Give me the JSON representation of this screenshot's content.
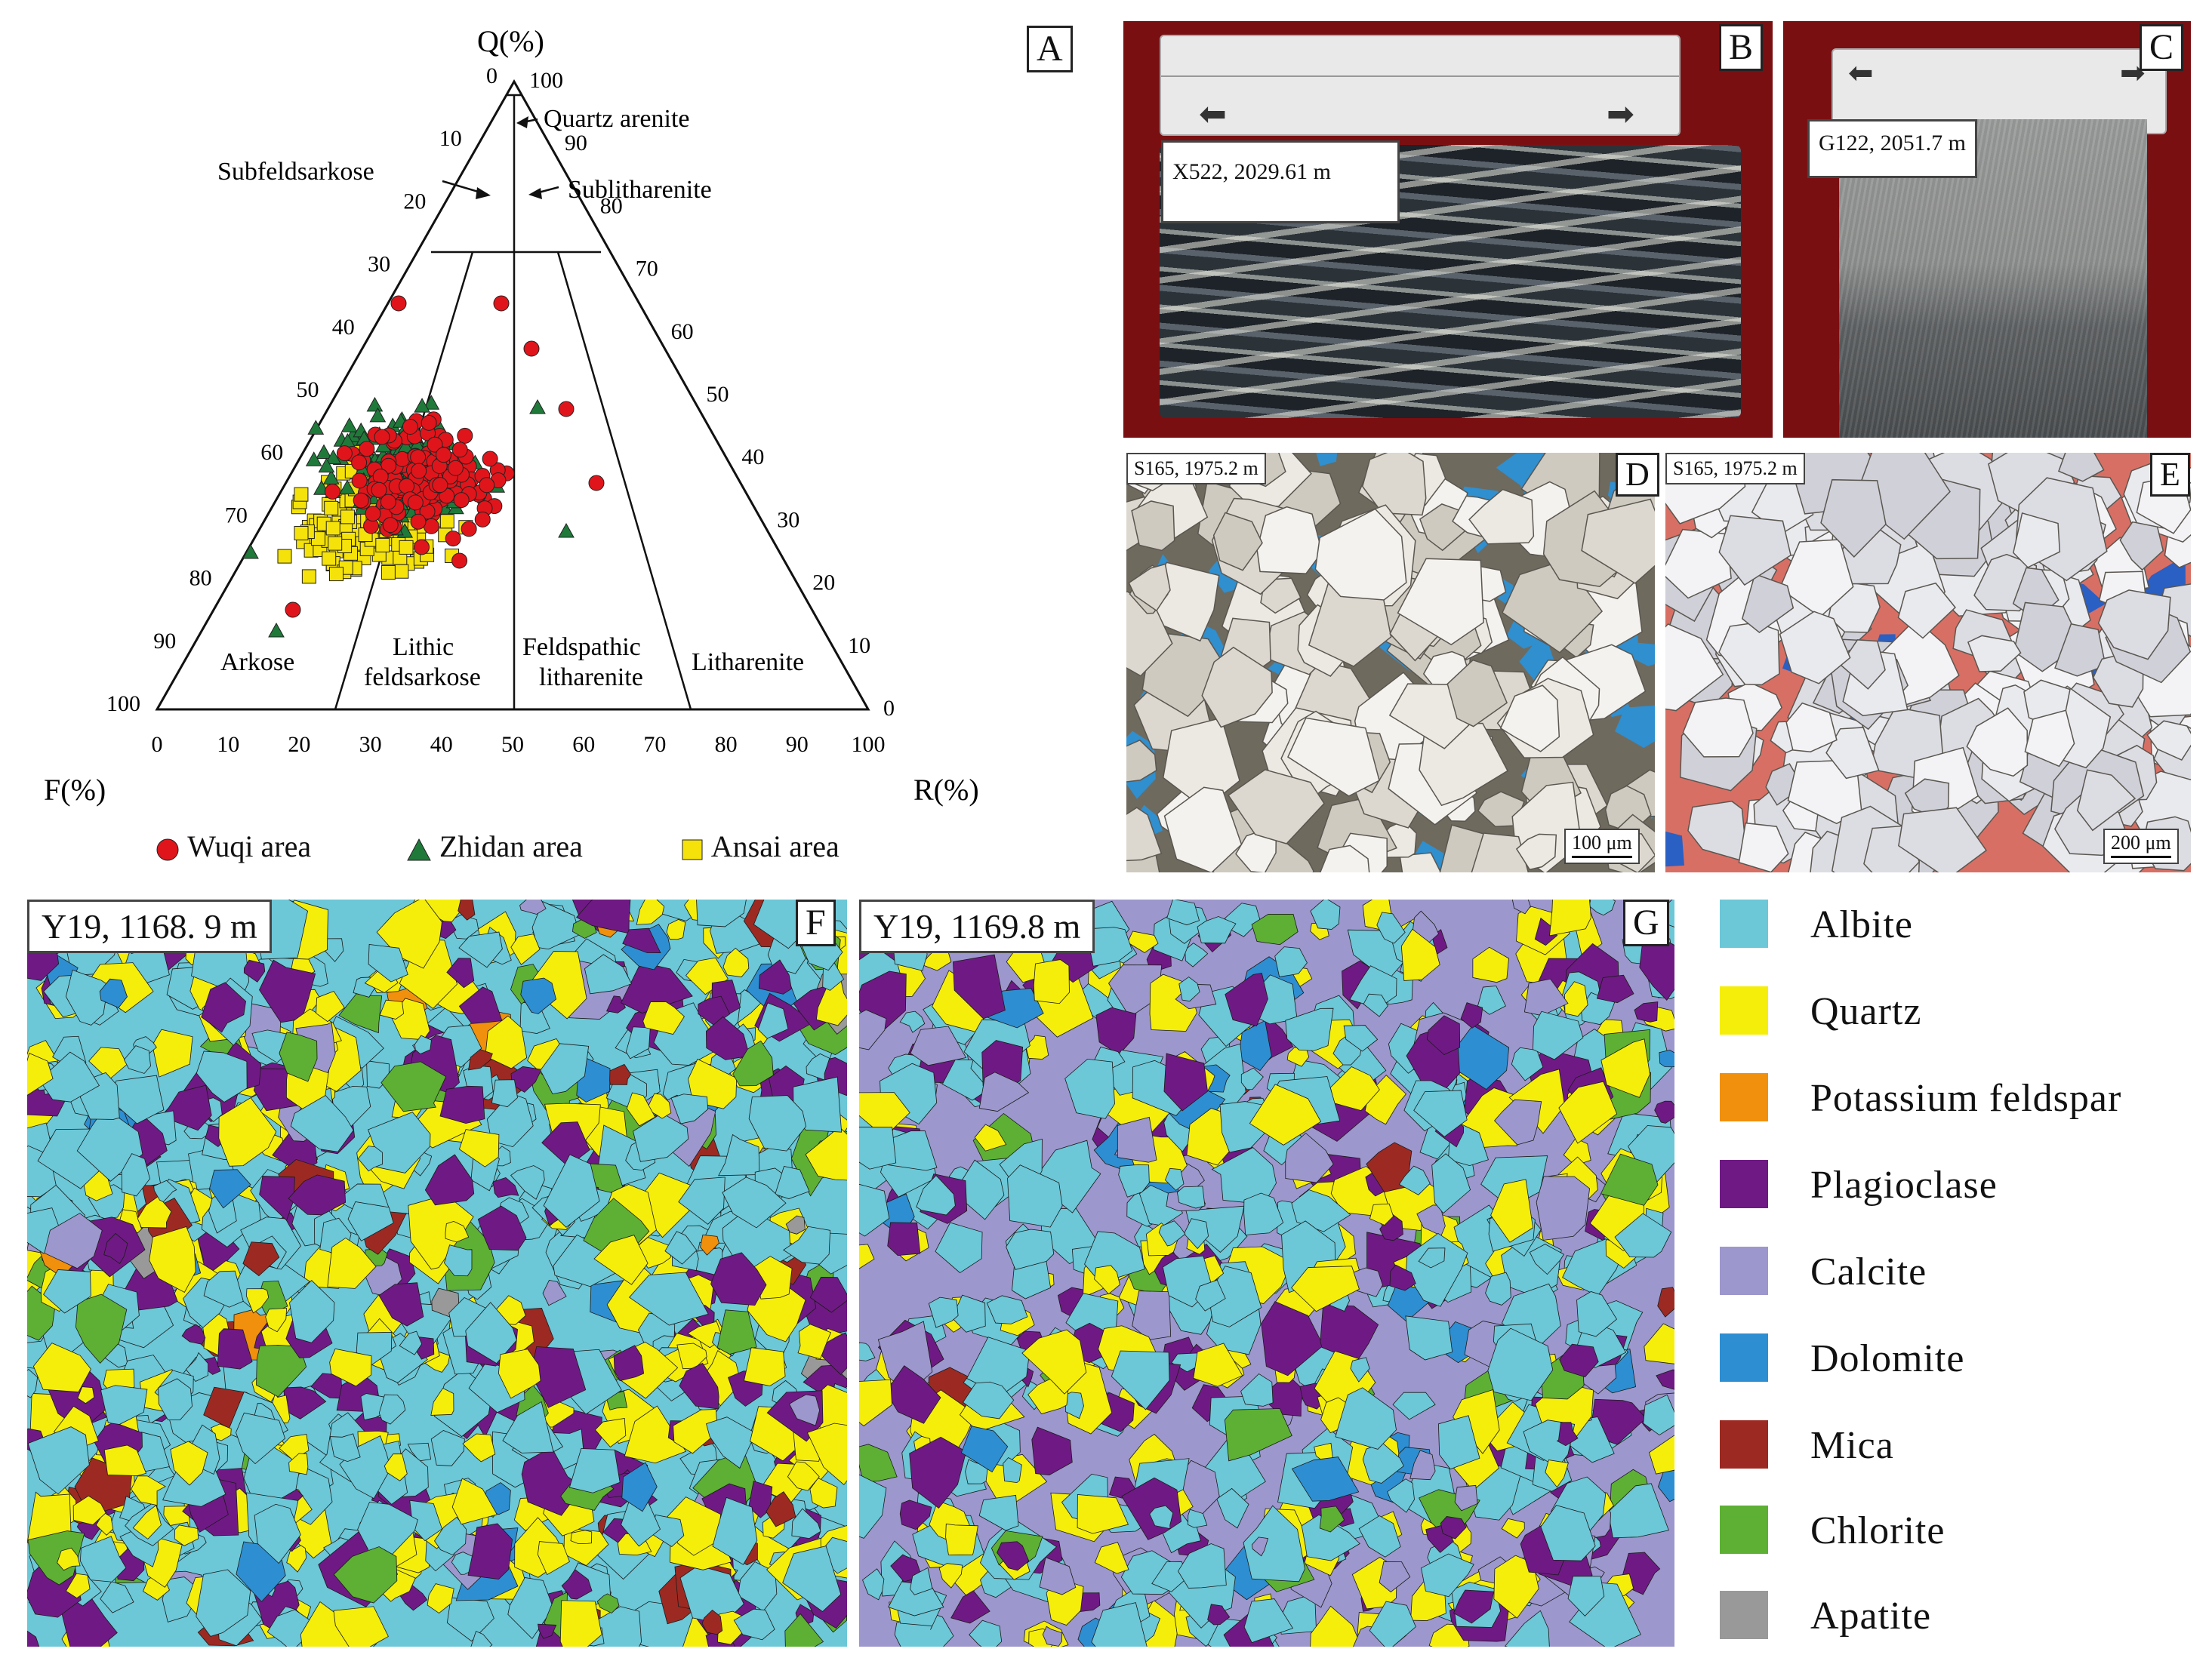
{
  "panel_A": {
    "letter": "A",
    "axes": {
      "top": "Q(%)",
      "left": "F(%)",
      "right": "R(%)"
    },
    "field_labels": {
      "quartz_arenite": "Quartz  arenite",
      "subfeldsarkose": "Subfeldsarkose",
      "sublitharenite": "Sublitharenite",
      "arkose": "Arkose",
      "lithic_feldsarkose_1": "Lithic",
      "lithic_feldsarkose_2": "feldsarkose",
      "feldspathic_litharenite_1": "Feldspathic",
      "feldspathic_litharenite_2": "litharenite",
      "litharenite": "Litharenite"
    },
    "left_ticks": [
      "0",
      "10",
      "20",
      "30",
      "40",
      "50",
      "60",
      "70",
      "80",
      "90",
      "100"
    ],
    "right_ticks": [
      "100",
      "90",
      "80",
      "70",
      "60",
      "50",
      "40",
      "30",
      "20",
      "10",
      "0"
    ],
    "bottom_ticks": [
      "0",
      "10",
      "20",
      "30",
      "40",
      "50",
      "60",
      "70",
      "80",
      "90",
      "100"
    ],
    "legend": [
      {
        "label": "Wuqi area",
        "color": "#e0151b",
        "shape": "circle"
      },
      {
        "label": "Zhidan area",
        "color": "#1f7a3a",
        "shape": "triangle"
      },
      {
        "label": "Ansai area",
        "color": "#f5e20a",
        "shape": "square"
      }
    ]
  },
  "panel_B": {
    "letter": "B",
    "caption": "X522, 2029.61 m"
  },
  "panel_C": {
    "letter": "C",
    "caption": "G122, 2051.7 m"
  },
  "panel_D": {
    "letter": "D",
    "caption": "S165, 1975.2 m",
    "scale": "100 μm"
  },
  "panel_E": {
    "letter": "E",
    "caption": "S165, 1975.2 m",
    "scale": "200 μm"
  },
  "panel_F": {
    "letter": "F",
    "caption": "Y19, 1168. 9 m"
  },
  "panel_G": {
    "letter": "G",
    "caption": "Y19, 1169.8 m"
  },
  "mineral_legend": [
    {
      "label": "Albite",
      "color": "#6cc7d7"
    },
    {
      "label": "Quartz",
      "color": "#f5ee0a"
    },
    {
      "label": "Potassium  feldspar",
      "color": "#f0900c"
    },
    {
      "label": "Plagioclase",
      "color": "#6f1a84"
    },
    {
      "label": "Calcite",
      "color": "#9c97cc"
    },
    {
      "label": "Dolomite",
      "color": "#2e8ed2"
    },
    {
      "label": "Mica",
      "color": "#9c2a22"
    },
    {
      "label": "Chlorite",
      "color": "#5db033"
    },
    {
      "label": "Apatite",
      "color": "#999999"
    }
  ]
}
